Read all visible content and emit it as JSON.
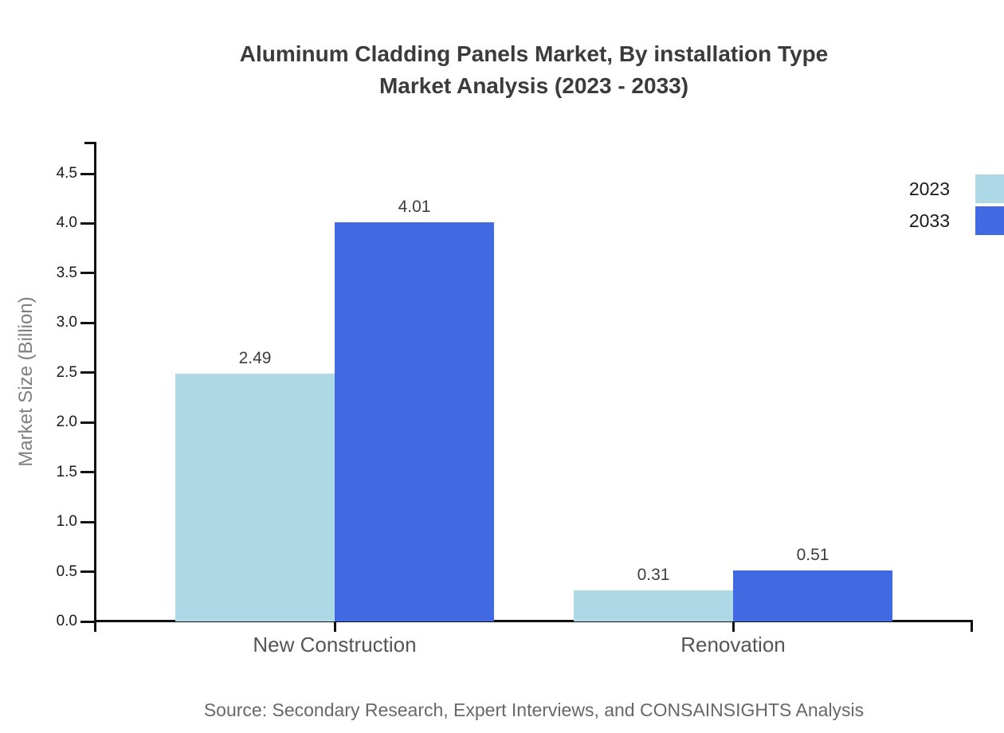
{
  "title": {
    "line1": "Aluminum Cladding Panels Market, By installation Type",
    "line2": "Market Analysis (2023 - 2033)"
  },
  "source": "Source: Secondary Research, Expert Interviews, and CONSAINSIGHTS Analysis",
  "chart_data": {
    "type": "bar",
    "title": "Aluminum Cladding Panels Market, By installation Type Market Analysis (2023 - 2033)",
    "categories": [
      "New Construction",
      "Renovation"
    ],
    "series": [
      {
        "name": "2023",
        "color": "#ADD8E6",
        "values": [
          2.49,
          0.31
        ]
      },
      {
        "name": "2033",
        "color": "#4169E1",
        "values": [
          4.01,
          0.51
        ]
      }
    ],
    "xlabel": "",
    "ylabel": "Market Size (Billion)",
    "ylim": [
      0,
      4.8
    ],
    "yticks": [
      0.0,
      0.5,
      1.0,
      1.5,
      2.0,
      2.5,
      3.0,
      3.5,
      4.0,
      4.5
    ],
    "grid": false,
    "legend_position": "upper-right-outside",
    "colors": {
      "axis": "#111111",
      "title_text": "#3b3b3b",
      "tick_text": "#1a1a1a",
      "category_text": "#555555",
      "value_text": "#3d3d3d",
      "axis_label_text": "#7f7f7f",
      "source_text": "#686868"
    }
  }
}
